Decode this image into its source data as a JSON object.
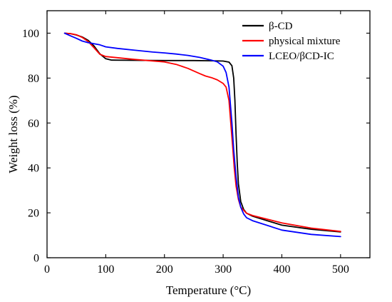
{
  "chart_data": {
    "type": "line",
    "xlabel": "Temperature (°C)",
    "ylabel": "Weight loss (%)",
    "xlim": [
      0,
      550
    ],
    "ylim": [
      0,
      110
    ],
    "xticks": [
      0,
      100,
      200,
      300,
      400,
      500
    ],
    "yticks": [
      0,
      20,
      40,
      60,
      80,
      100
    ],
    "grid": false,
    "legend_position": "top-right",
    "series": [
      {
        "name": "β-CD",
        "color": "#000000",
        "points": [
          [
            30,
            100
          ],
          [
            40,
            99.8
          ],
          [
            50,
            99.2
          ],
          [
            60,
            98.3
          ],
          [
            70,
            96.8
          ],
          [
            80,
            94.3
          ],
          [
            90,
            90.8
          ],
          [
            100,
            88.6
          ],
          [
            110,
            88.0
          ],
          [
            150,
            87.9
          ],
          [
            200,
            87.8
          ],
          [
            250,
            87.8
          ],
          [
            280,
            87.7
          ],
          [
            300,
            87.6
          ],
          [
            310,
            87.1
          ],
          [
            315,
            85.5
          ],
          [
            318,
            80
          ],
          [
            320,
            70
          ],
          [
            322,
            55
          ],
          [
            324,
            42
          ],
          [
            326,
            33
          ],
          [
            330,
            25
          ],
          [
            335,
            21.5
          ],
          [
            340,
            19.8
          ],
          [
            350,
            18.5
          ],
          [
            400,
            14.5
          ],
          [
            450,
            12.7
          ],
          [
            500,
            11.5
          ]
        ]
      },
      {
        "name": "physical mixture",
        "color": "#ff0000",
        "points": [
          [
            30,
            100
          ],
          [
            40,
            99.8
          ],
          [
            50,
            99.3
          ],
          [
            60,
            98.1
          ],
          [
            70,
            96.3
          ],
          [
            80,
            93.5
          ],
          [
            90,
            90.6
          ],
          [
            100,
            89.6
          ],
          [
            150,
            88.3
          ],
          [
            200,
            87.2
          ],
          [
            220,
            86.1
          ],
          [
            240,
            84.3
          ],
          [
            260,
            82.0
          ],
          [
            270,
            80.9
          ],
          [
            280,
            80.2
          ],
          [
            290,
            79.2
          ],
          [
            300,
            77.6
          ],
          [
            305,
            76.0
          ],
          [
            310,
            70
          ],
          [
            313,
            60
          ],
          [
            316,
            50
          ],
          [
            319,
            40
          ],
          [
            322,
            32
          ],
          [
            326,
            26
          ],
          [
            330,
            22.5
          ],
          [
            340,
            19.8
          ],
          [
            350,
            18.8
          ],
          [
            400,
            15.5
          ],
          [
            450,
            13.2
          ],
          [
            500,
            11.7
          ]
        ]
      },
      {
        "name": "LCEO/βCD-IC",
        "color": "#0000ff",
        "points": [
          [
            30,
            100
          ],
          [
            40,
            98.8
          ],
          [
            50,
            97.7
          ],
          [
            60,
            96.5
          ],
          [
            70,
            95.8
          ],
          [
            80,
            95.3
          ],
          [
            90,
            94.8
          ],
          [
            100,
            93.9
          ],
          [
            120,
            93.2
          ],
          [
            150,
            92.4
          ],
          [
            180,
            91.6
          ],
          [
            200,
            91.2
          ],
          [
            220,
            90.7
          ],
          [
            240,
            90.1
          ],
          [
            260,
            89.2
          ],
          [
            280,
            88.0
          ],
          [
            290,
            87.2
          ],
          [
            300,
            85.3
          ],
          [
            305,
            82.5
          ],
          [
            310,
            76
          ],
          [
            315,
            60
          ],
          [
            318,
            48
          ],
          [
            322,
            36
          ],
          [
            326,
            27
          ],
          [
            330,
            22.5
          ],
          [
            335,
            19.5
          ],
          [
            340,
            17.8
          ],
          [
            350,
            16.5
          ],
          [
            400,
            12.3
          ],
          [
            450,
            10.4
          ],
          [
            500,
            9.4
          ]
        ]
      }
    ]
  }
}
